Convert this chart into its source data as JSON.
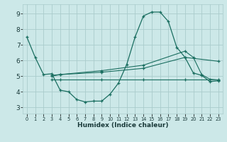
{
  "xlabel": "Humidex (Indice chaleur)",
  "bg_color": "#cce8e8",
  "grid_color": "#aacccc",
  "line_color": "#1a6e60",
  "xlim": [
    -0.5,
    23.5
  ],
  "ylim": [
    2.6,
    9.6
  ],
  "xticks": [
    0,
    1,
    2,
    3,
    4,
    5,
    6,
    7,
    8,
    9,
    10,
    11,
    12,
    13,
    14,
    15,
    16,
    17,
    18,
    19,
    20,
    21,
    22,
    23
  ],
  "yticks": [
    3,
    4,
    5,
    6,
    7,
    8,
    9
  ],
  "line1_x": [
    0,
    1,
    2,
    3,
    4,
    5,
    6,
    7,
    8,
    9,
    10,
    11,
    12,
    13,
    14,
    15,
    16,
    17,
    18,
    19,
    20,
    21,
    22,
    23
  ],
  "line1_y": [
    7.5,
    6.2,
    5.1,
    5.15,
    4.1,
    4.0,
    3.5,
    3.35,
    3.4,
    3.4,
    3.85,
    4.55,
    5.75,
    7.5,
    8.85,
    9.1,
    9.1,
    8.5,
    6.85,
    6.2,
    5.2,
    5.05,
    4.65,
    4.7
  ],
  "line2_x": [
    3,
    4,
    9,
    14,
    19,
    20,
    21,
    22,
    23
  ],
  "line2_y": [
    5.05,
    5.1,
    5.35,
    5.7,
    6.6,
    6.2,
    5.1,
    4.8,
    4.75
  ],
  "line3_x": [
    3,
    4,
    9,
    14,
    19,
    23
  ],
  "line3_y": [
    5.0,
    5.1,
    5.25,
    5.5,
    6.2,
    5.95
  ],
  "line4_x": [
    3,
    4,
    9,
    14,
    19,
    23
  ],
  "line4_y": [
    4.8,
    4.8,
    4.8,
    4.8,
    4.8,
    4.8
  ]
}
